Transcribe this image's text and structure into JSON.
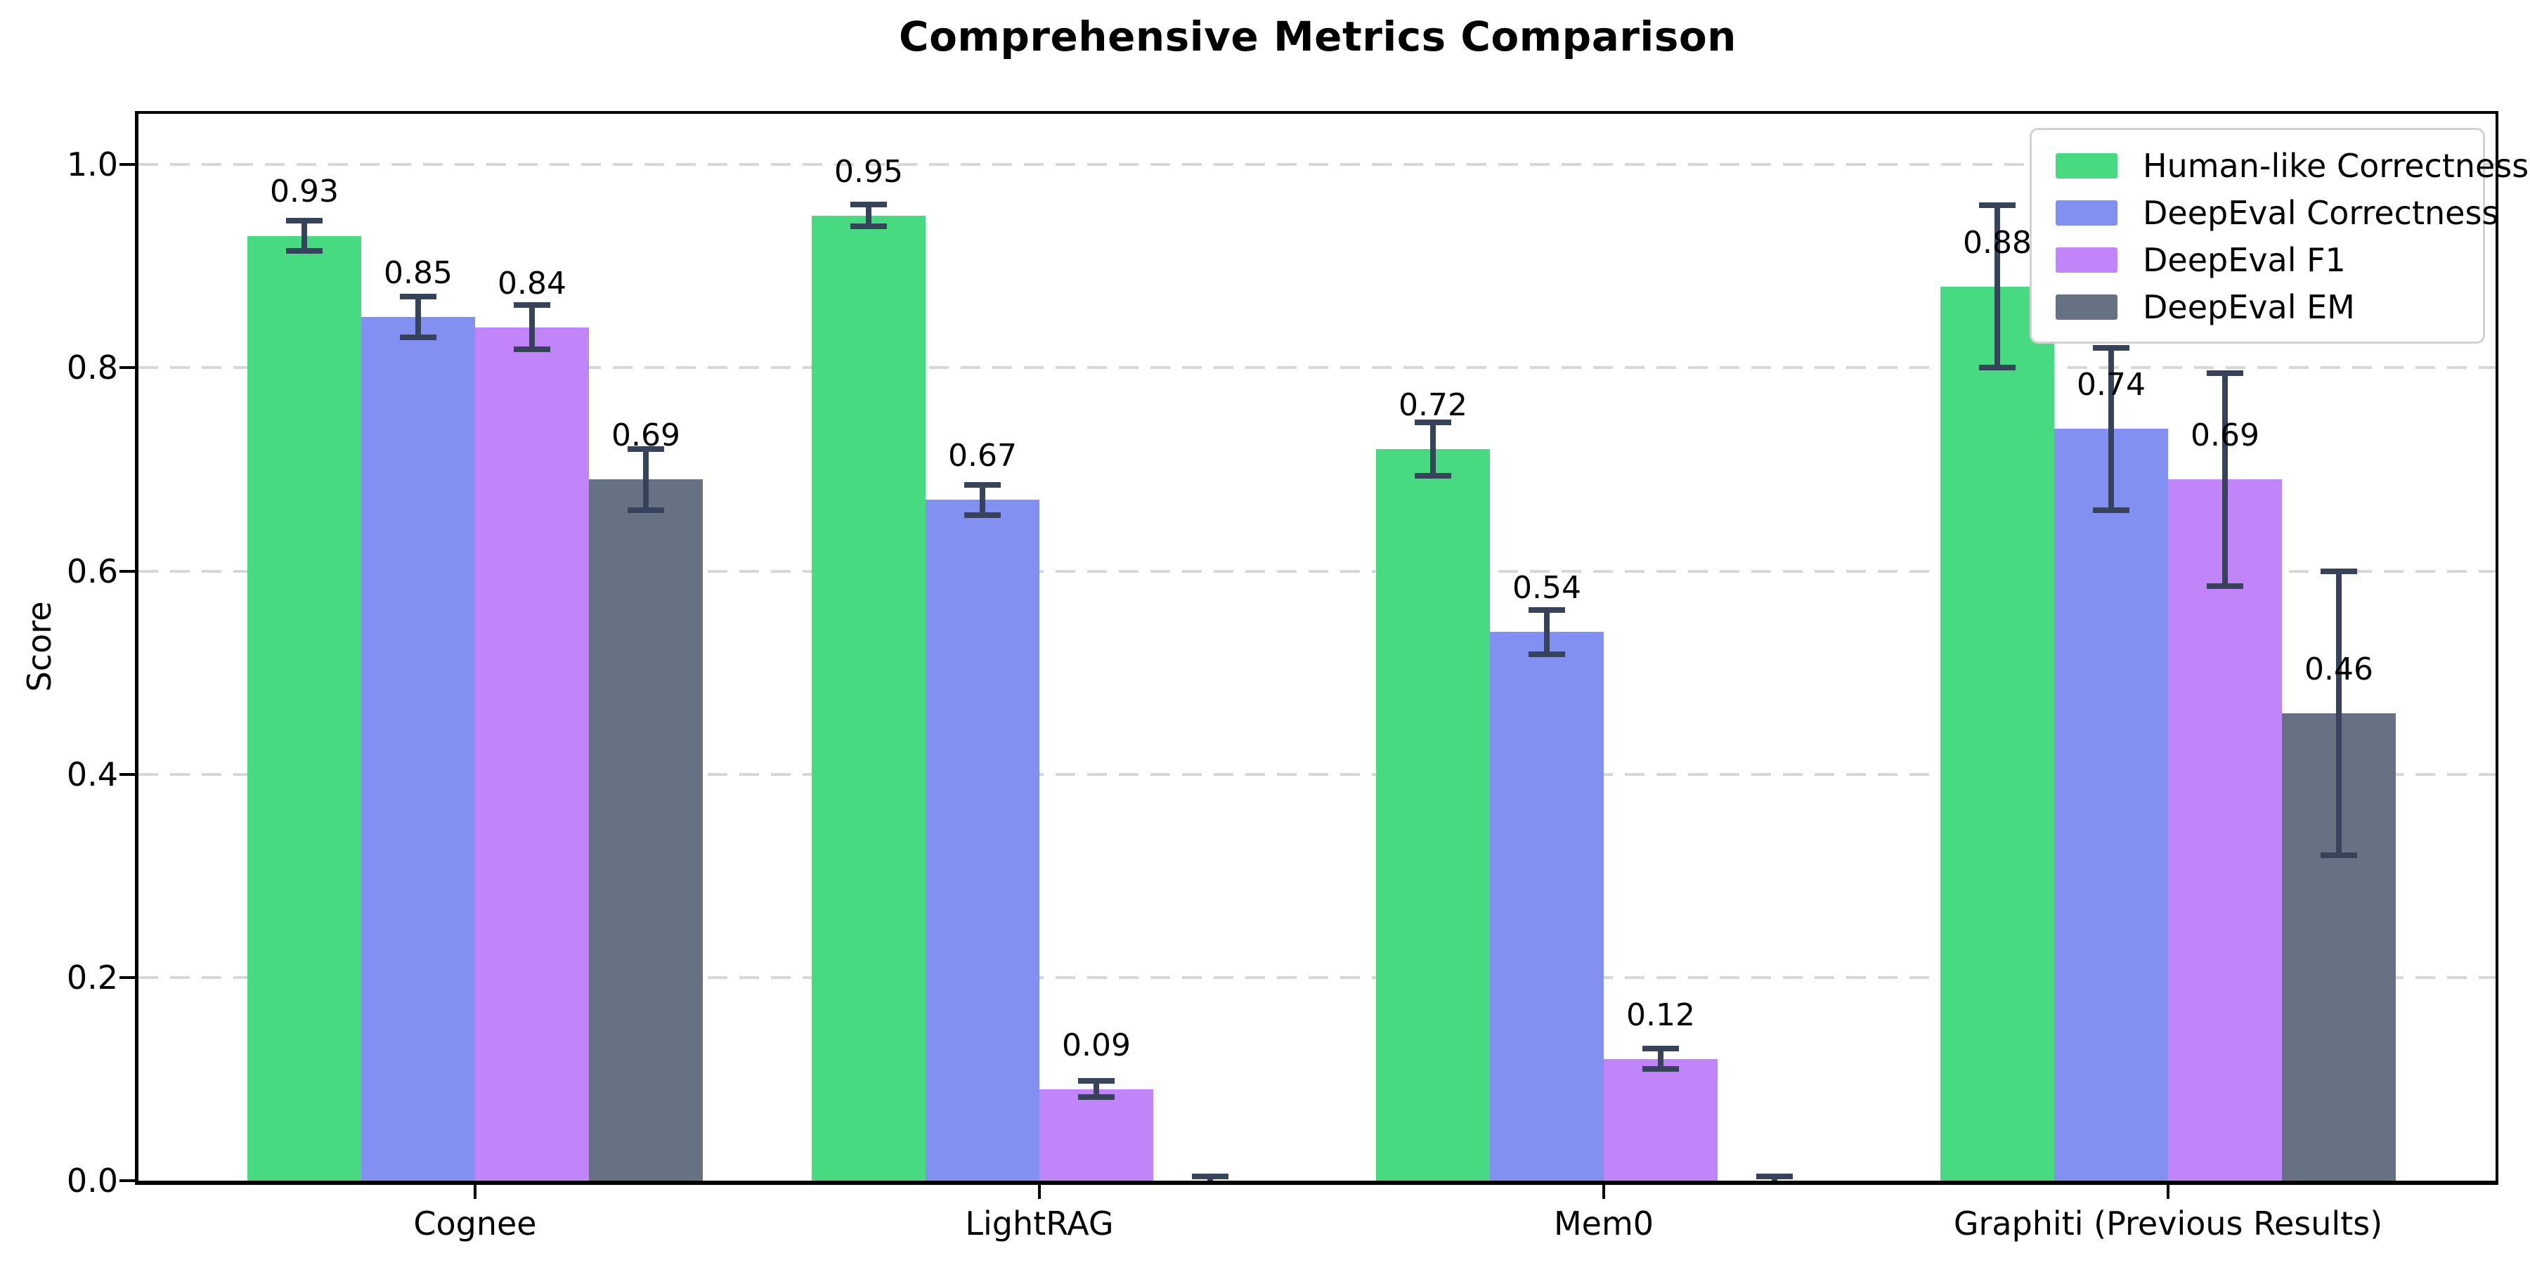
{
  "chart_data": {
    "type": "bar",
    "title": "Comprehensive Metrics Comparison",
    "xlabel": "",
    "ylabel": "Score",
    "ylim": [
      0,
      1.05
    ],
    "yticks": [
      "0.0",
      "0.2",
      "0.4",
      "0.6",
      "0.8",
      "1.0"
    ],
    "grid": "horizontal-dashed",
    "legend_position": "upper right",
    "categories": [
      "Cognee",
      "LightRAG",
      "Mem0",
      "Graphiti (Previous Results)"
    ],
    "series": [
      {
        "name": "Human-like Correctness",
        "color": "#47da81",
        "values": [
          0.93,
          0.95,
          0.72,
          0.88
        ],
        "errors": [
          0.015,
          0.011,
          0.026,
          0.08
        ],
        "labels": [
          "0.93",
          "0.95",
          "0.72",
          "0.88"
        ]
      },
      {
        "name": "DeepEval Correctness",
        "color": "#8290f2",
        "values": [
          0.85,
          0.67,
          0.54,
          0.74
        ],
        "errors": [
          0.02,
          0.015,
          0.022,
          0.08
        ],
        "labels": [
          "0.85",
          "0.67",
          "0.54",
          "0.74"
        ]
      },
      {
        "name": "DeepEval F1",
        "color": "#c184f9",
        "values": [
          0.84,
          0.09,
          0.12,
          0.69
        ],
        "errors": [
          0.022,
          0.008,
          0.01,
          0.105
        ],
        "labels": [
          "0.84",
          "0.09",
          "0.12",
          "0.69"
        ]
      },
      {
        "name": "DeepEval EM",
        "color": "#667284",
        "values": [
          0.69,
          0.0,
          0.0,
          0.46
        ],
        "errors": [
          0.03,
          0.004,
          0.004,
          0.14
        ],
        "labels": [
          "0.69",
          "",
          "",
          "0.46"
        ]
      }
    ],
    "error_bar_color": "#36435a"
  }
}
